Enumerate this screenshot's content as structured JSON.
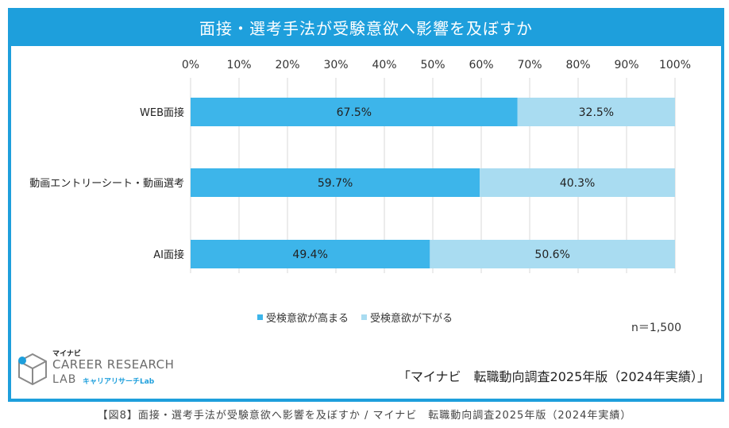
{
  "header": {
    "title": "面接・選考手法が受験意欲へ影響を及ぼすか"
  },
  "chart_data": {
    "type": "bar",
    "orientation": "horizontal",
    "stacked": true,
    "categories": [
      "WEB面接",
      "動画エントリーシート・動画選考",
      "AI面接"
    ],
    "series": [
      {
        "name": "受検意欲が高まる",
        "values": [
          67.5,
          59.7,
          49.4
        ],
        "labels": [
          "67.5%",
          "59.7%",
          "49.4%"
        ],
        "color": "#3db5ea"
      },
      {
        "name": "受検意欲が下がる",
        "values": [
          32.5,
          40.3,
          50.6
        ],
        "labels": [
          "32.5%",
          "40.3%",
          "50.6%"
        ],
        "color": "#a9dcf1"
      }
    ],
    "xlim": [
      0,
      100
    ],
    "xticks": [
      "0%",
      "10%",
      "20%",
      "30%",
      "40%",
      "50%",
      "60%",
      "70%",
      "80%",
      "90%",
      "100%"
    ],
    "grid": true,
    "legend_position": "bottom"
  },
  "note": "n＝1,500",
  "source": "「マイナビ　転職動向調査2025年版（2024年実績）」",
  "logo": {
    "top": "マイナビ",
    "main": "CAREER RESEARCH",
    "sub1": "LAB",
    "sub2": "キャリアリサーチLab"
  },
  "caption": "【図8】面接・選考手法が受験意欲へ影響を及ぼすか / マイナビ　転職動向調査2025年版（2024年実績）"
}
